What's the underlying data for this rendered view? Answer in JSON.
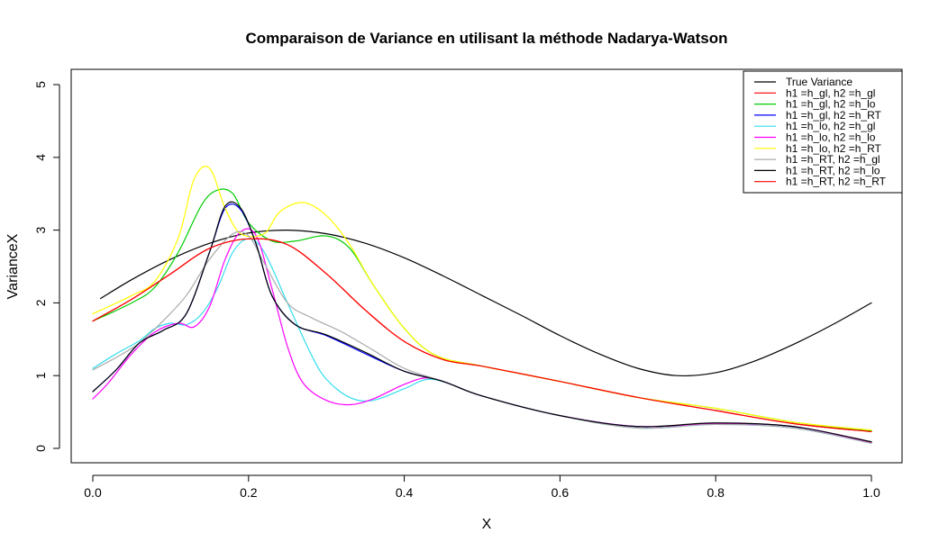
{
  "chart_data": {
    "type": "line",
    "title": "Comparaison de Variance en utilisant la méthode Nadarya-Watson",
    "xlabel": "X",
    "ylabel": "VarianceX",
    "xlim": [
      0,
      1
    ],
    "ylim": [
      0,
      5
    ],
    "xticks": [
      "0.0",
      "0.2",
      "0.4",
      "0.6",
      "0.8",
      "1.0"
    ],
    "yticks": [
      "0",
      "1",
      "2",
      "3",
      "4",
      "5"
    ],
    "grid": false,
    "legend_position": "top-right",
    "series": [
      {
        "name": "True Variance",
        "color": "#000000",
        "x": [
          0.01,
          0.05,
          0.1,
          0.15,
          0.2,
          0.25,
          0.3,
          0.35,
          0.4,
          0.45,
          0.5,
          0.55,
          0.6,
          0.65,
          0.7,
          0.75,
          0.8,
          0.85,
          0.9,
          0.95,
          1.0
        ],
        "y": [
          2.06,
          2.32,
          2.6,
          2.82,
          2.96,
          3.0,
          2.95,
          2.82,
          2.62,
          2.37,
          2.1,
          1.83,
          1.55,
          1.3,
          1.1,
          1.0,
          1.04,
          1.2,
          1.43,
          1.7,
          2.0
        ]
      },
      {
        "name": "h1 =h_gl, h2 =h_gl",
        "color": "#ff0000",
        "x": [
          0.0,
          0.05,
          0.1,
          0.15,
          0.2,
          0.25,
          0.3,
          0.35,
          0.4,
          0.45,
          0.5,
          0.6,
          0.7,
          0.8,
          0.9,
          1.0
        ],
        "y": [
          1.75,
          2.05,
          2.4,
          2.75,
          2.88,
          2.8,
          2.4,
          1.9,
          1.47,
          1.22,
          1.13,
          0.92,
          0.7,
          0.52,
          0.34,
          0.23
        ]
      },
      {
        "name": "h1 =h_gl, h2 =h_lo",
        "color": "#00cc00",
        "x": [
          0.0,
          0.05,
          0.08,
          0.11,
          0.14,
          0.16,
          0.18,
          0.2,
          0.23,
          0.26,
          0.3,
          0.33,
          0.36,
          0.4,
          0.44,
          0.5,
          0.6,
          0.7,
          0.8,
          0.9,
          1.0
        ],
        "y": [
          1.75,
          2.0,
          2.22,
          2.7,
          3.35,
          3.55,
          3.5,
          3.1,
          2.85,
          2.85,
          2.92,
          2.75,
          2.25,
          1.65,
          1.28,
          1.13,
          0.92,
          0.7,
          0.55,
          0.36,
          0.24
        ]
      },
      {
        "name": "h1 =h_gl, h2 =h_RT",
        "color": "#0000ff",
        "x": [
          0.0,
          0.03,
          0.06,
          0.09,
          0.12,
          0.15,
          0.17,
          0.19,
          0.21,
          0.23,
          0.26,
          0.3,
          0.35,
          0.4,
          0.45,
          0.5,
          0.6,
          0.7,
          0.8,
          0.9,
          1.0
        ],
        "y": [
          0.78,
          1.08,
          1.45,
          1.62,
          1.85,
          2.7,
          3.3,
          3.28,
          2.8,
          2.1,
          1.7,
          1.55,
          1.3,
          1.06,
          0.92,
          0.72,
          0.45,
          0.3,
          0.34,
          0.3,
          0.08
        ]
      },
      {
        "name": "h1 =h_lo, h2 =h_gl",
        "color": "#33ddee",
        "x": [
          0.0,
          0.03,
          0.06,
          0.08,
          0.1,
          0.12,
          0.14,
          0.16,
          0.18,
          0.2,
          0.22,
          0.25,
          0.28,
          0.3,
          0.33,
          0.36,
          0.4,
          0.43,
          0.46,
          0.5,
          0.6,
          0.7,
          0.8,
          0.9,
          1.0
        ],
        "y": [
          1.1,
          1.3,
          1.48,
          1.65,
          1.72,
          1.7,
          1.85,
          2.2,
          2.7,
          2.88,
          2.7,
          2.0,
          1.3,
          0.95,
          0.7,
          0.66,
          0.82,
          0.95,
          0.88,
          0.72,
          0.45,
          0.28,
          0.33,
          0.28,
          0.07
        ]
      },
      {
        "name": "h1 =h_lo, h2 =h_lo",
        "color": "#ff00ff",
        "x": [
          0.0,
          0.02,
          0.05,
          0.08,
          0.11,
          0.13,
          0.15,
          0.17,
          0.19,
          0.21,
          0.23,
          0.25,
          0.27,
          0.3,
          0.33,
          0.36,
          0.4,
          0.43,
          0.46,
          0.5,
          0.6,
          0.7,
          0.8,
          0.9,
          1.0
        ],
        "y": [
          0.68,
          0.9,
          1.3,
          1.6,
          1.72,
          1.67,
          1.95,
          2.6,
          2.98,
          2.92,
          2.2,
          1.4,
          0.9,
          0.66,
          0.6,
          0.68,
          0.88,
          0.97,
          0.88,
          0.72,
          0.45,
          0.3,
          0.34,
          0.3,
          0.08
        ]
      },
      {
        "name": "h1 =h_lo, h2 =h_RT",
        "color": "#ffff00",
        "x": [
          0.0,
          0.05,
          0.08,
          0.11,
          0.13,
          0.15,
          0.17,
          0.19,
          0.22,
          0.24,
          0.27,
          0.3,
          0.33,
          0.36,
          0.4,
          0.44,
          0.5,
          0.6,
          0.7,
          0.8,
          0.9,
          1.0
        ],
        "y": [
          1.85,
          2.1,
          2.3,
          2.9,
          3.7,
          3.85,
          3.3,
          2.95,
          2.95,
          3.25,
          3.38,
          3.2,
          2.8,
          2.25,
          1.65,
          1.28,
          1.13,
          0.92,
          0.7,
          0.55,
          0.36,
          0.25
        ]
      },
      {
        "name": "h1 =h_RT, h2 =h_gl",
        "color": "#aaaaaa",
        "x": [
          0.0,
          0.03,
          0.06,
          0.09,
          0.12,
          0.15,
          0.18,
          0.2,
          0.22,
          0.25,
          0.28,
          0.32,
          0.36,
          0.4,
          0.45,
          0.5,
          0.6,
          0.7,
          0.8,
          0.9,
          1.0
        ],
        "y": [
          1.08,
          1.25,
          1.45,
          1.75,
          2.1,
          2.6,
          2.95,
          2.92,
          2.55,
          2.0,
          1.8,
          1.6,
          1.35,
          1.1,
          0.92,
          0.72,
          0.45,
          0.28,
          0.33,
          0.28,
          0.07
        ]
      },
      {
        "name": "h1 =h_RT, h2 =h_lo",
        "color": "#000000",
        "x": [
          0.0,
          0.03,
          0.06,
          0.09,
          0.12,
          0.15,
          0.17,
          0.19,
          0.21,
          0.23,
          0.26,
          0.3,
          0.35,
          0.4,
          0.45,
          0.5,
          0.6,
          0.7,
          0.8,
          0.9,
          1.0
        ],
        "y": [
          0.78,
          1.08,
          1.45,
          1.62,
          1.85,
          2.7,
          3.33,
          3.3,
          2.8,
          2.1,
          1.7,
          1.56,
          1.32,
          1.06,
          0.92,
          0.72,
          0.45,
          0.3,
          0.35,
          0.3,
          0.09
        ]
      },
      {
        "name": "h1 =h_RT, h2 =h_RT",
        "color": "#ff0000",
        "x": [
          0.0,
          0.05,
          0.1,
          0.15,
          0.2,
          0.25,
          0.3,
          0.35,
          0.4,
          0.45,
          0.5,
          0.6,
          0.7,
          0.8,
          0.9,
          1.0
        ],
        "y": [
          1.75,
          2.05,
          2.4,
          2.75,
          2.88,
          2.8,
          2.4,
          1.9,
          1.47,
          1.22,
          1.13,
          0.92,
          0.7,
          0.52,
          0.34,
          0.23
        ]
      }
    ]
  }
}
